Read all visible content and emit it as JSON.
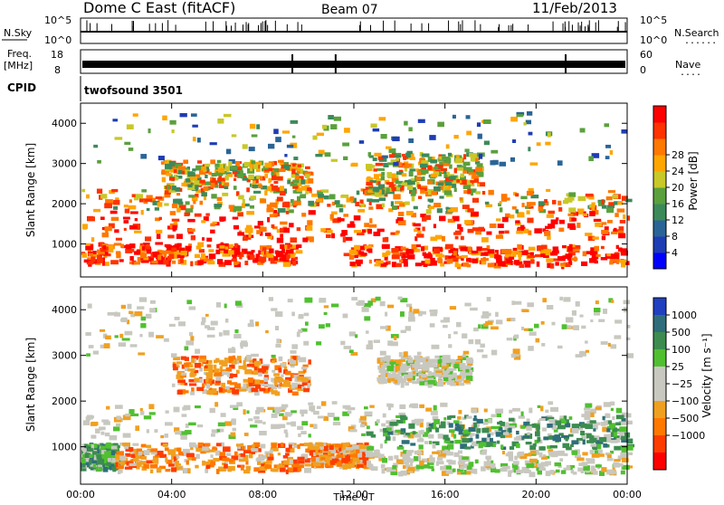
{
  "header": {
    "station": "Dome C East (fitACF)",
    "beam": "Beam 07",
    "date": "11/Feb/2013"
  },
  "labels": {
    "nsky": "N.Sky",
    "nsearch": "N.Search",
    "freq_line1": "Freq.",
    "freq_line2": "[MHz]",
    "nave": "Nave",
    "cpid": "CPID",
    "cpid_value": "twofsound 3501",
    "dots": "......",
    "dots_short": "...."
  },
  "top_panels": {
    "nsky_ticks": [
      "10^5",
      "10^0"
    ],
    "nsearch_ticks": [
      "10^5",
      "10^0"
    ],
    "freq_ticks": [
      "18",
      "8"
    ],
    "nave_ticks": [
      "60",
      "0"
    ]
  },
  "chart_data": [
    {
      "type": "heatmap",
      "name": "power",
      "xlabel": "",
      "ylabel": "Slant Range [km]",
      "ylim": [
        180,
        4500
      ],
      "y_ticks": [
        "1000",
        "2000",
        "3000",
        "4000"
      ],
      "x_ticks_hours": [
        0,
        4,
        8,
        12,
        16,
        20,
        24
      ],
      "colorbar": {
        "label": "Power [dB]",
        "ticks": [
          "4",
          "8",
          "12",
          "16",
          "20",
          "24",
          "28"
        ],
        "colors": [
          "#0000ff",
          "#1e3cb4",
          "#2a6496",
          "#3c8a5a",
          "#5aa03c",
          "#c8c828",
          "#ffa500",
          "#ff7800",
          "#ff3200",
          "#ff0000"
        ]
      },
      "bands": [
        {
          "t0": 0.0,
          "t1": 24.0,
          "r0": 1150,
          "r1": 1850,
          "level": "high"
        },
        {
          "t0": 0.0,
          "t1": 9.5,
          "r0": 550,
          "r1": 1050,
          "level": "high"
        },
        {
          "t0": 11.5,
          "t1": 24.0,
          "r0": 500,
          "r1": 1000,
          "level": "high"
        },
        {
          "t0": 0.0,
          "t1": 24.0,
          "r0": 1850,
          "r1": 2400,
          "level": "mid"
        },
        {
          "t0": 3.5,
          "t1": 10.0,
          "r0": 2400,
          "r1": 3100,
          "level": "mid"
        },
        {
          "t0": 12.5,
          "t1": 17.5,
          "r0": 2300,
          "r1": 3300,
          "level": "mid"
        },
        {
          "t0": 0.0,
          "t1": 24.0,
          "r0": 3000,
          "r1": 4300,
          "level": "low"
        }
      ]
    },
    {
      "type": "heatmap",
      "name": "velocity",
      "xlabel": "Time UT",
      "ylabel": "Slant Range [km]",
      "ylim": [
        180,
        4500
      ],
      "y_ticks": [
        "1000",
        "2000",
        "3000",
        "4000"
      ],
      "x_ticks_hours": [
        0,
        4,
        8,
        12,
        16,
        20,
        24
      ],
      "x_tick_labels": [
        "00:00",
        "04:00",
        "08:00",
        "12:00",
        "16:00",
        "20:00",
        "00:00"
      ],
      "colorbar": {
        "label": "Velocity [m s⁻¹]",
        "ticks": [
          "1000",
          "500",
          "100",
          "25",
          "−25",
          "−100",
          "−500",
          "−1000"
        ],
        "colors": [
          "#2040c0",
          "#2e6e7a",
          "#3c8c50",
          "#50c030",
          "#c8c8c0",
          "#c8c8c0",
          "#f0a020",
          "#ff7800",
          "#ff3c00",
          "#ff0000"
        ]
      },
      "bands": [
        {
          "t0": 0.0,
          "t1": 24.0,
          "r0": 1250,
          "r1": 2000,
          "level": "zero"
        },
        {
          "t0": 0.0,
          "t1": 1.5,
          "r0": 550,
          "r1": 1100,
          "level": "pos"
        },
        {
          "t0": 1.5,
          "t1": 10.0,
          "r0": 500,
          "r1": 1100,
          "level": "neg"
        },
        {
          "t0": 10.0,
          "t1": 12.5,
          "r0": 600,
          "r1": 1100,
          "level": "neg"
        },
        {
          "t0": 12.5,
          "t1": 24.0,
          "r0": 1000,
          "r1": 1700,
          "level": "pos"
        },
        {
          "t0": 12.5,
          "t1": 24.0,
          "r0": 450,
          "r1": 950,
          "level": "zero"
        },
        {
          "t0": 4.0,
          "t1": 10.0,
          "r0": 2200,
          "r1": 3000,
          "level": "neg"
        },
        {
          "t0": 13.0,
          "t1": 17.0,
          "r0": 2400,
          "r1": 3000,
          "level": "zero"
        },
        {
          "t0": 0.0,
          "t1": 24.0,
          "r0": 3000,
          "r1": 4300,
          "level": "zero"
        }
      ]
    }
  ]
}
